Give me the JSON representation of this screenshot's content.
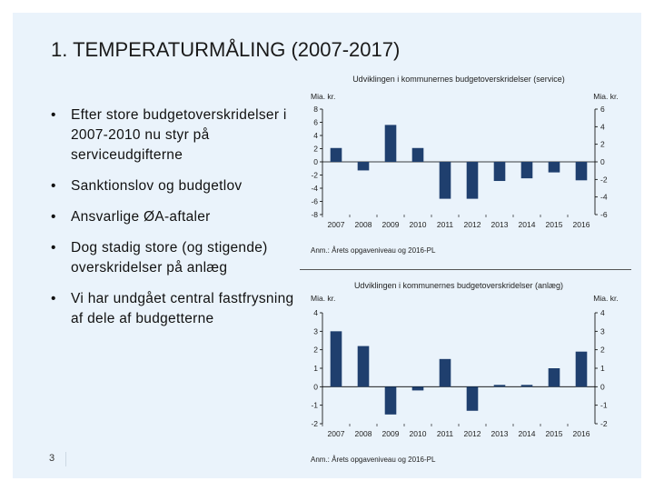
{
  "slide": {
    "title": "1. TEMPERATURMÅLING (2007-2017)",
    "page_number": "3",
    "bullets": [
      "Efter store budgetoverskridelser i 2007-2010 nu styr på serviceudgifterne",
      "Sanktionslov og budgetlov",
      "Ansvarlige ØA-aftaler",
      "Dog stadig store (og stigende) overskridelser på anlæg",
      "Vi har undgået central fastfrysning af dele af budgetterne"
    ],
    "bullet_symbol": "•"
  },
  "colors": {
    "bar": "#1f3f6e",
    "background": "#eaf3fb",
    "grid": "#000000"
  },
  "chart_data": [
    {
      "type": "bar",
      "title": "Udviklingen i kommunernes budgetoverskridelser (service)",
      "ylabel_left": "Mia. kr.",
      "ylabel_right": "Mia. kr.",
      "categories": [
        "2007",
        "2008",
        "2009",
        "2010",
        "2011",
        "2012",
        "2013",
        "2014",
        "2015",
        "2016"
      ],
      "values": [
        2.1,
        -1.3,
        5.6,
        2.1,
        -5.6,
        -5.6,
        -2.9,
        -2.5,
        -1.6,
        -2.8
      ],
      "ylim_left": [
        -8,
        8
      ],
      "ylim_right": [
        -6,
        6
      ],
      "yticks_left": [
        "8",
        "6",
        "4",
        "2",
        "0",
        "-2",
        "-4",
        "-6",
        "-8"
      ],
      "yticks_right": [
        "6",
        "4",
        "2",
        "0",
        "-2",
        "-4",
        "-6"
      ],
      "note": "Anm.: Årets opgaveniveau og 2016-PL"
    },
    {
      "type": "bar",
      "title": "Udviklingen i kommunernes budgetoverskridelser (anlæg)",
      "ylabel_left": "Mia. kr.",
      "ylabel_right": "Mia. kr.",
      "categories": [
        "2007",
        "2008",
        "2009",
        "2010",
        "2011",
        "2012",
        "2013",
        "2014",
        "2015",
        "2016"
      ],
      "values": [
        3.0,
        2.2,
        -1.5,
        -0.2,
        1.5,
        -1.3,
        0.1,
        0.1,
        1.0,
        1.9
      ],
      "ylim_left": [
        -2,
        4
      ],
      "ylim_right": [
        -2,
        4
      ],
      "yticks_left": [
        "4",
        "3",
        "2",
        "1",
        "0",
        "-1",
        "-2"
      ],
      "yticks_right": [
        "4",
        "3",
        "2",
        "1",
        "0",
        "-1",
        "-2"
      ],
      "note": "Anm.: Årets opgaveniveau og 2016-PL"
    }
  ]
}
